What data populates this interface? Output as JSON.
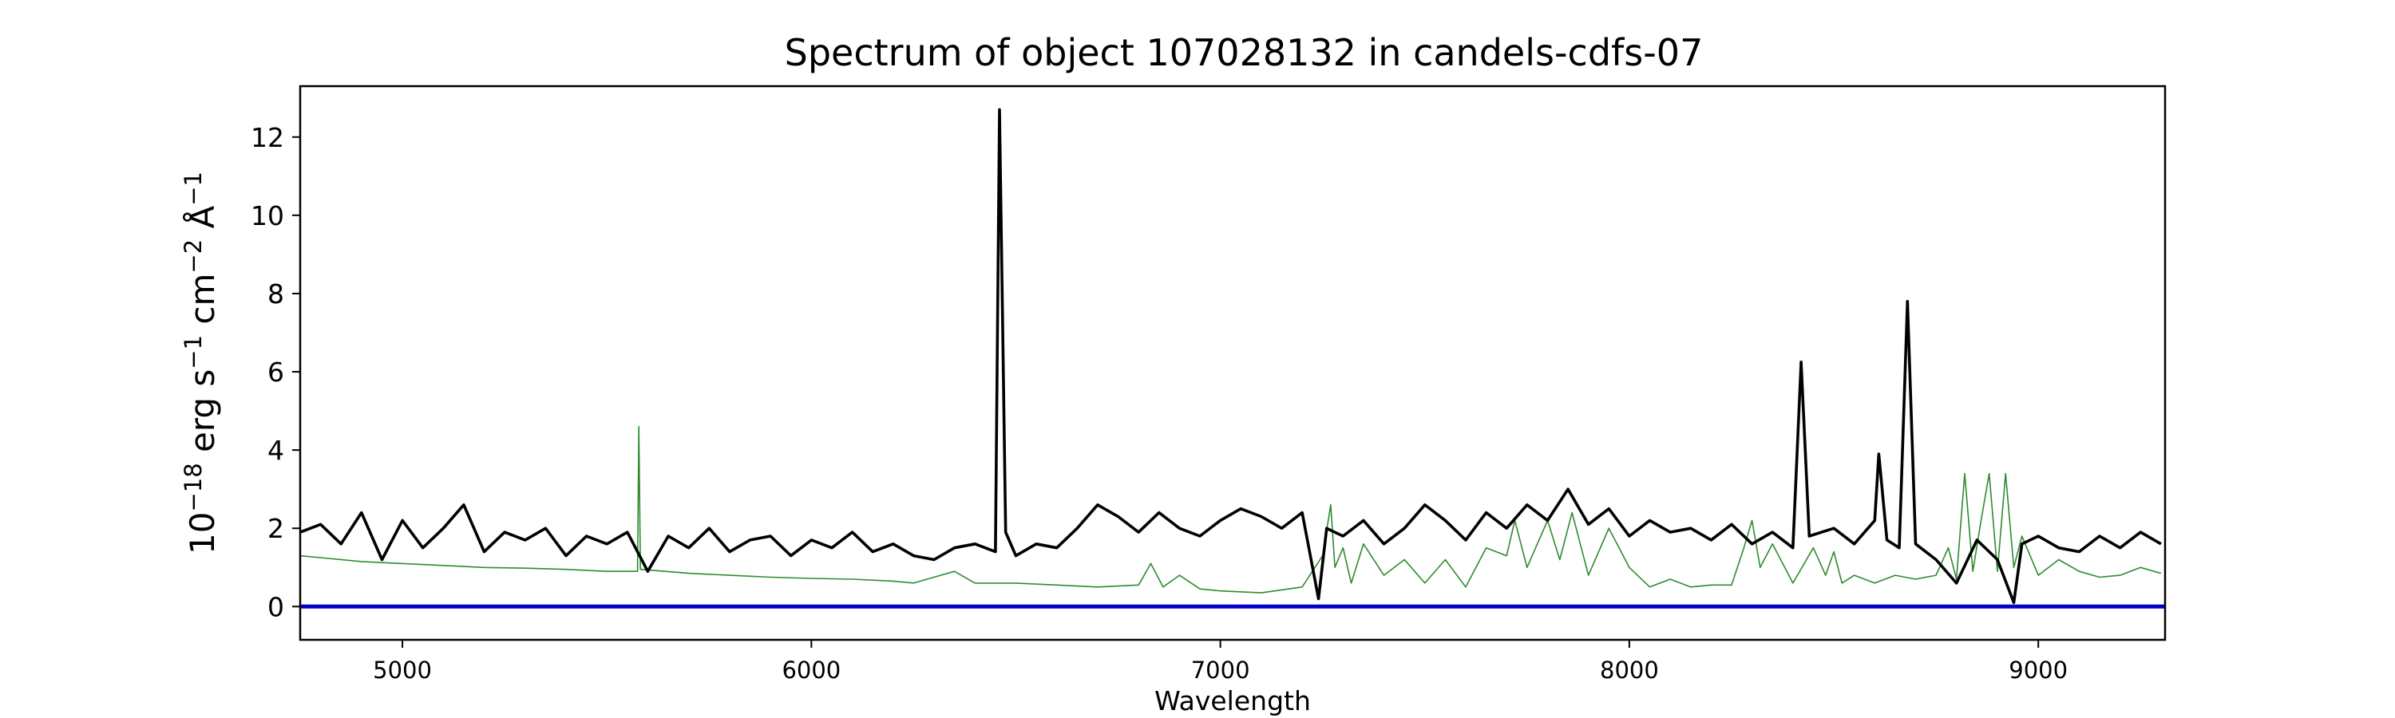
{
  "chart_data": {
    "type": "line",
    "title": "Spectrum of object 107028132 in candels-cdfs-07",
    "xlabel": "Wavelength",
    "ylabel": {
      "base": "10",
      "base_exp": "−18",
      "part1": " erg s",
      "exp1": "−1",
      "part2": " cm",
      "exp2": "−2",
      "part3": " Å",
      "exp3": "−1"
    },
    "xlim": [
      4750,
      9310
    ],
    "ylim": [
      -0.85,
      13.3
    ],
    "x_ticks": [
      5000,
      6000,
      7000,
      8000,
      9000
    ],
    "x_tick_labels": [
      "5000",
      "6000",
      "7000",
      "8000",
      "9000"
    ],
    "y_ticks": [
      0,
      2,
      4,
      6,
      8,
      10,
      12
    ],
    "y_tick_labels": [
      "0",
      "2",
      "4",
      "6",
      "8",
      "10",
      "12"
    ],
    "grid": false,
    "series": [
      {
        "role": "noise",
        "color": "#2e8b2e",
        "points": [
          [
            4750,
            1.3
          ],
          [
            4800,
            1.25
          ],
          [
            4900,
            1.15
          ],
          [
            5000,
            1.1
          ],
          [
            5100,
            1.05
          ],
          [
            5200,
            1.0
          ],
          [
            5300,
            0.98
          ],
          [
            5400,
            0.95
          ],
          [
            5500,
            0.9
          ],
          [
            5575,
            0.9
          ],
          [
            5578,
            4.6
          ],
          [
            5582,
            0.95
          ],
          [
            5700,
            0.85
          ],
          [
            5800,
            0.8
          ],
          [
            5900,
            0.75
          ],
          [
            6000,
            0.72
          ],
          [
            6100,
            0.7
          ],
          [
            6200,
            0.65
          ],
          [
            6250,
            0.6
          ],
          [
            6300,
            0.75
          ],
          [
            6350,
            0.9
          ],
          [
            6400,
            0.6
          ],
          [
            6500,
            0.6
          ],
          [
            6600,
            0.55
          ],
          [
            6700,
            0.5
          ],
          [
            6800,
            0.55
          ],
          [
            6830,
            1.1
          ],
          [
            6860,
            0.5
          ],
          [
            6900,
            0.8
          ],
          [
            6950,
            0.45
          ],
          [
            7000,
            0.4
          ],
          [
            7100,
            0.35
          ],
          [
            7200,
            0.5
          ],
          [
            7250,
            1.3
          ],
          [
            7270,
            2.6
          ],
          [
            7280,
            1.0
          ],
          [
            7300,
            1.5
          ],
          [
            7320,
            0.6
          ],
          [
            7350,
            1.6
          ],
          [
            7400,
            0.8
          ],
          [
            7450,
            1.2
          ],
          [
            7500,
            0.6
          ],
          [
            7550,
            1.2
          ],
          [
            7600,
            0.5
          ],
          [
            7650,
            1.5
          ],
          [
            7700,
            1.3
          ],
          [
            7720,
            2.2
          ],
          [
            7750,
            1.0
          ],
          [
            7800,
            2.2
          ],
          [
            7830,
            1.2
          ],
          [
            7860,
            2.4
          ],
          [
            7900,
            0.8
          ],
          [
            7950,
            2.0
          ],
          [
            8000,
            1.0
          ],
          [
            8050,
            0.5
          ],
          [
            8100,
            0.7
          ],
          [
            8150,
            0.5
          ],
          [
            8200,
            0.55
          ],
          [
            8250,
            0.55
          ],
          [
            8280,
            1.5
          ],
          [
            8300,
            2.2
          ],
          [
            8320,
            1.0
          ],
          [
            8350,
            1.6
          ],
          [
            8400,
            0.6
          ],
          [
            8450,
            1.5
          ],
          [
            8480,
            0.8
          ],
          [
            8500,
            1.4
          ],
          [
            8520,
            0.6
          ],
          [
            8550,
            0.8
          ],
          [
            8600,
            0.6
          ],
          [
            8650,
            0.8
          ],
          [
            8700,
            0.7
          ],
          [
            8750,
            0.8
          ],
          [
            8780,
            1.5
          ],
          [
            8800,
            0.7
          ],
          [
            8820,
            3.4
          ],
          [
            8840,
            0.9
          ],
          [
            8860,
            2.2
          ],
          [
            8880,
            3.4
          ],
          [
            8900,
            0.9
          ],
          [
            8920,
            3.4
          ],
          [
            8940,
            1.0
          ],
          [
            8960,
            1.8
          ],
          [
            9000,
            0.8
          ],
          [
            9050,
            1.2
          ],
          [
            9100,
            0.9
          ],
          [
            9150,
            0.75
          ],
          [
            9200,
            0.8
          ],
          [
            9250,
            1.0
          ],
          [
            9300,
            0.85
          ]
        ]
      },
      {
        "role": "flux",
        "color": "#000000",
        "points": [
          [
            4750,
            1.9
          ],
          [
            4800,
            2.1
          ],
          [
            4850,
            1.6
          ],
          [
            4900,
            2.4
          ],
          [
            4950,
            1.2
          ],
          [
            5000,
            2.2
          ],
          [
            5050,
            1.5
          ],
          [
            5100,
            2.0
          ],
          [
            5150,
            2.6
          ],
          [
            5200,
            1.4
          ],
          [
            5250,
            1.9
          ],
          [
            5300,
            1.7
          ],
          [
            5350,
            2.0
          ],
          [
            5400,
            1.3
          ],
          [
            5450,
            1.8
          ],
          [
            5500,
            1.6
          ],
          [
            5550,
            1.9
          ],
          [
            5600,
            0.9
          ],
          [
            5650,
            1.8
          ],
          [
            5700,
            1.5
          ],
          [
            5750,
            2.0
          ],
          [
            5800,
            1.4
          ],
          [
            5850,
            1.7
          ],
          [
            5900,
            1.8
          ],
          [
            5950,
            1.3
          ],
          [
            6000,
            1.7
          ],
          [
            6050,
            1.5
          ],
          [
            6100,
            1.9
          ],
          [
            6150,
            1.4
          ],
          [
            6200,
            1.6
          ],
          [
            6250,
            1.3
          ],
          [
            6300,
            1.2
          ],
          [
            6350,
            1.5
          ],
          [
            6400,
            1.6
          ],
          [
            6450,
            1.4
          ],
          [
            6460,
            12.7
          ],
          [
            6475,
            1.9
          ],
          [
            6500,
            1.3
          ],
          [
            6550,
            1.6
          ],
          [
            6600,
            1.5
          ],
          [
            6650,
            2.0
          ],
          [
            6700,
            2.6
          ],
          [
            6750,
            2.3
          ],
          [
            6800,
            1.9
          ],
          [
            6850,
            2.4
          ],
          [
            6900,
            2.0
          ],
          [
            6950,
            1.8
          ],
          [
            7000,
            2.2
          ],
          [
            7050,
            2.5
          ],
          [
            7100,
            2.3
          ],
          [
            7150,
            2.0
          ],
          [
            7200,
            2.4
          ],
          [
            7240,
            0.2
          ],
          [
            7260,
            2.0
          ],
          [
            7300,
            1.8
          ],
          [
            7350,
            2.2
          ],
          [
            7400,
            1.6
          ],
          [
            7450,
            2.0
          ],
          [
            7500,
            2.6
          ],
          [
            7550,
            2.2
          ],
          [
            7600,
            1.7
          ],
          [
            7650,
            2.4
          ],
          [
            7700,
            2.0
          ],
          [
            7750,
            2.6
          ],
          [
            7800,
            2.2
          ],
          [
            7850,
            3.0
          ],
          [
            7900,
            2.1
          ],
          [
            7950,
            2.5
          ],
          [
            8000,
            1.8
          ],
          [
            8050,
            2.2
          ],
          [
            8100,
            1.9
          ],
          [
            8150,
            2.0
          ],
          [
            8200,
            1.7
          ],
          [
            8250,
            2.1
          ],
          [
            8300,
            1.6
          ],
          [
            8350,
            1.9
          ],
          [
            8400,
            1.5
          ],
          [
            8420,
            6.25
          ],
          [
            8440,
            1.8
          ],
          [
            8500,
            2.0
          ],
          [
            8550,
            1.6
          ],
          [
            8600,
            2.2
          ],
          [
            8610,
            3.9
          ],
          [
            8630,
            1.7
          ],
          [
            8660,
            1.5
          ],
          [
            8680,
            7.8
          ],
          [
            8700,
            1.6
          ],
          [
            8750,
            1.2
          ],
          [
            8800,
            0.6
          ],
          [
            8850,
            1.7
          ],
          [
            8900,
            1.2
          ],
          [
            8940,
            0.1
          ],
          [
            8960,
            1.6
          ],
          [
            9000,
            1.8
          ],
          [
            9050,
            1.5
          ],
          [
            9100,
            1.4
          ],
          [
            9150,
            1.8
          ],
          [
            9200,
            1.5
          ],
          [
            9250,
            1.9
          ],
          [
            9300,
            1.6
          ]
        ]
      },
      {
        "role": "zero-line",
        "color": "#0000cc",
        "points": [
          [
            4750,
            0
          ],
          [
            9310,
            0
          ]
        ]
      }
    ]
  }
}
